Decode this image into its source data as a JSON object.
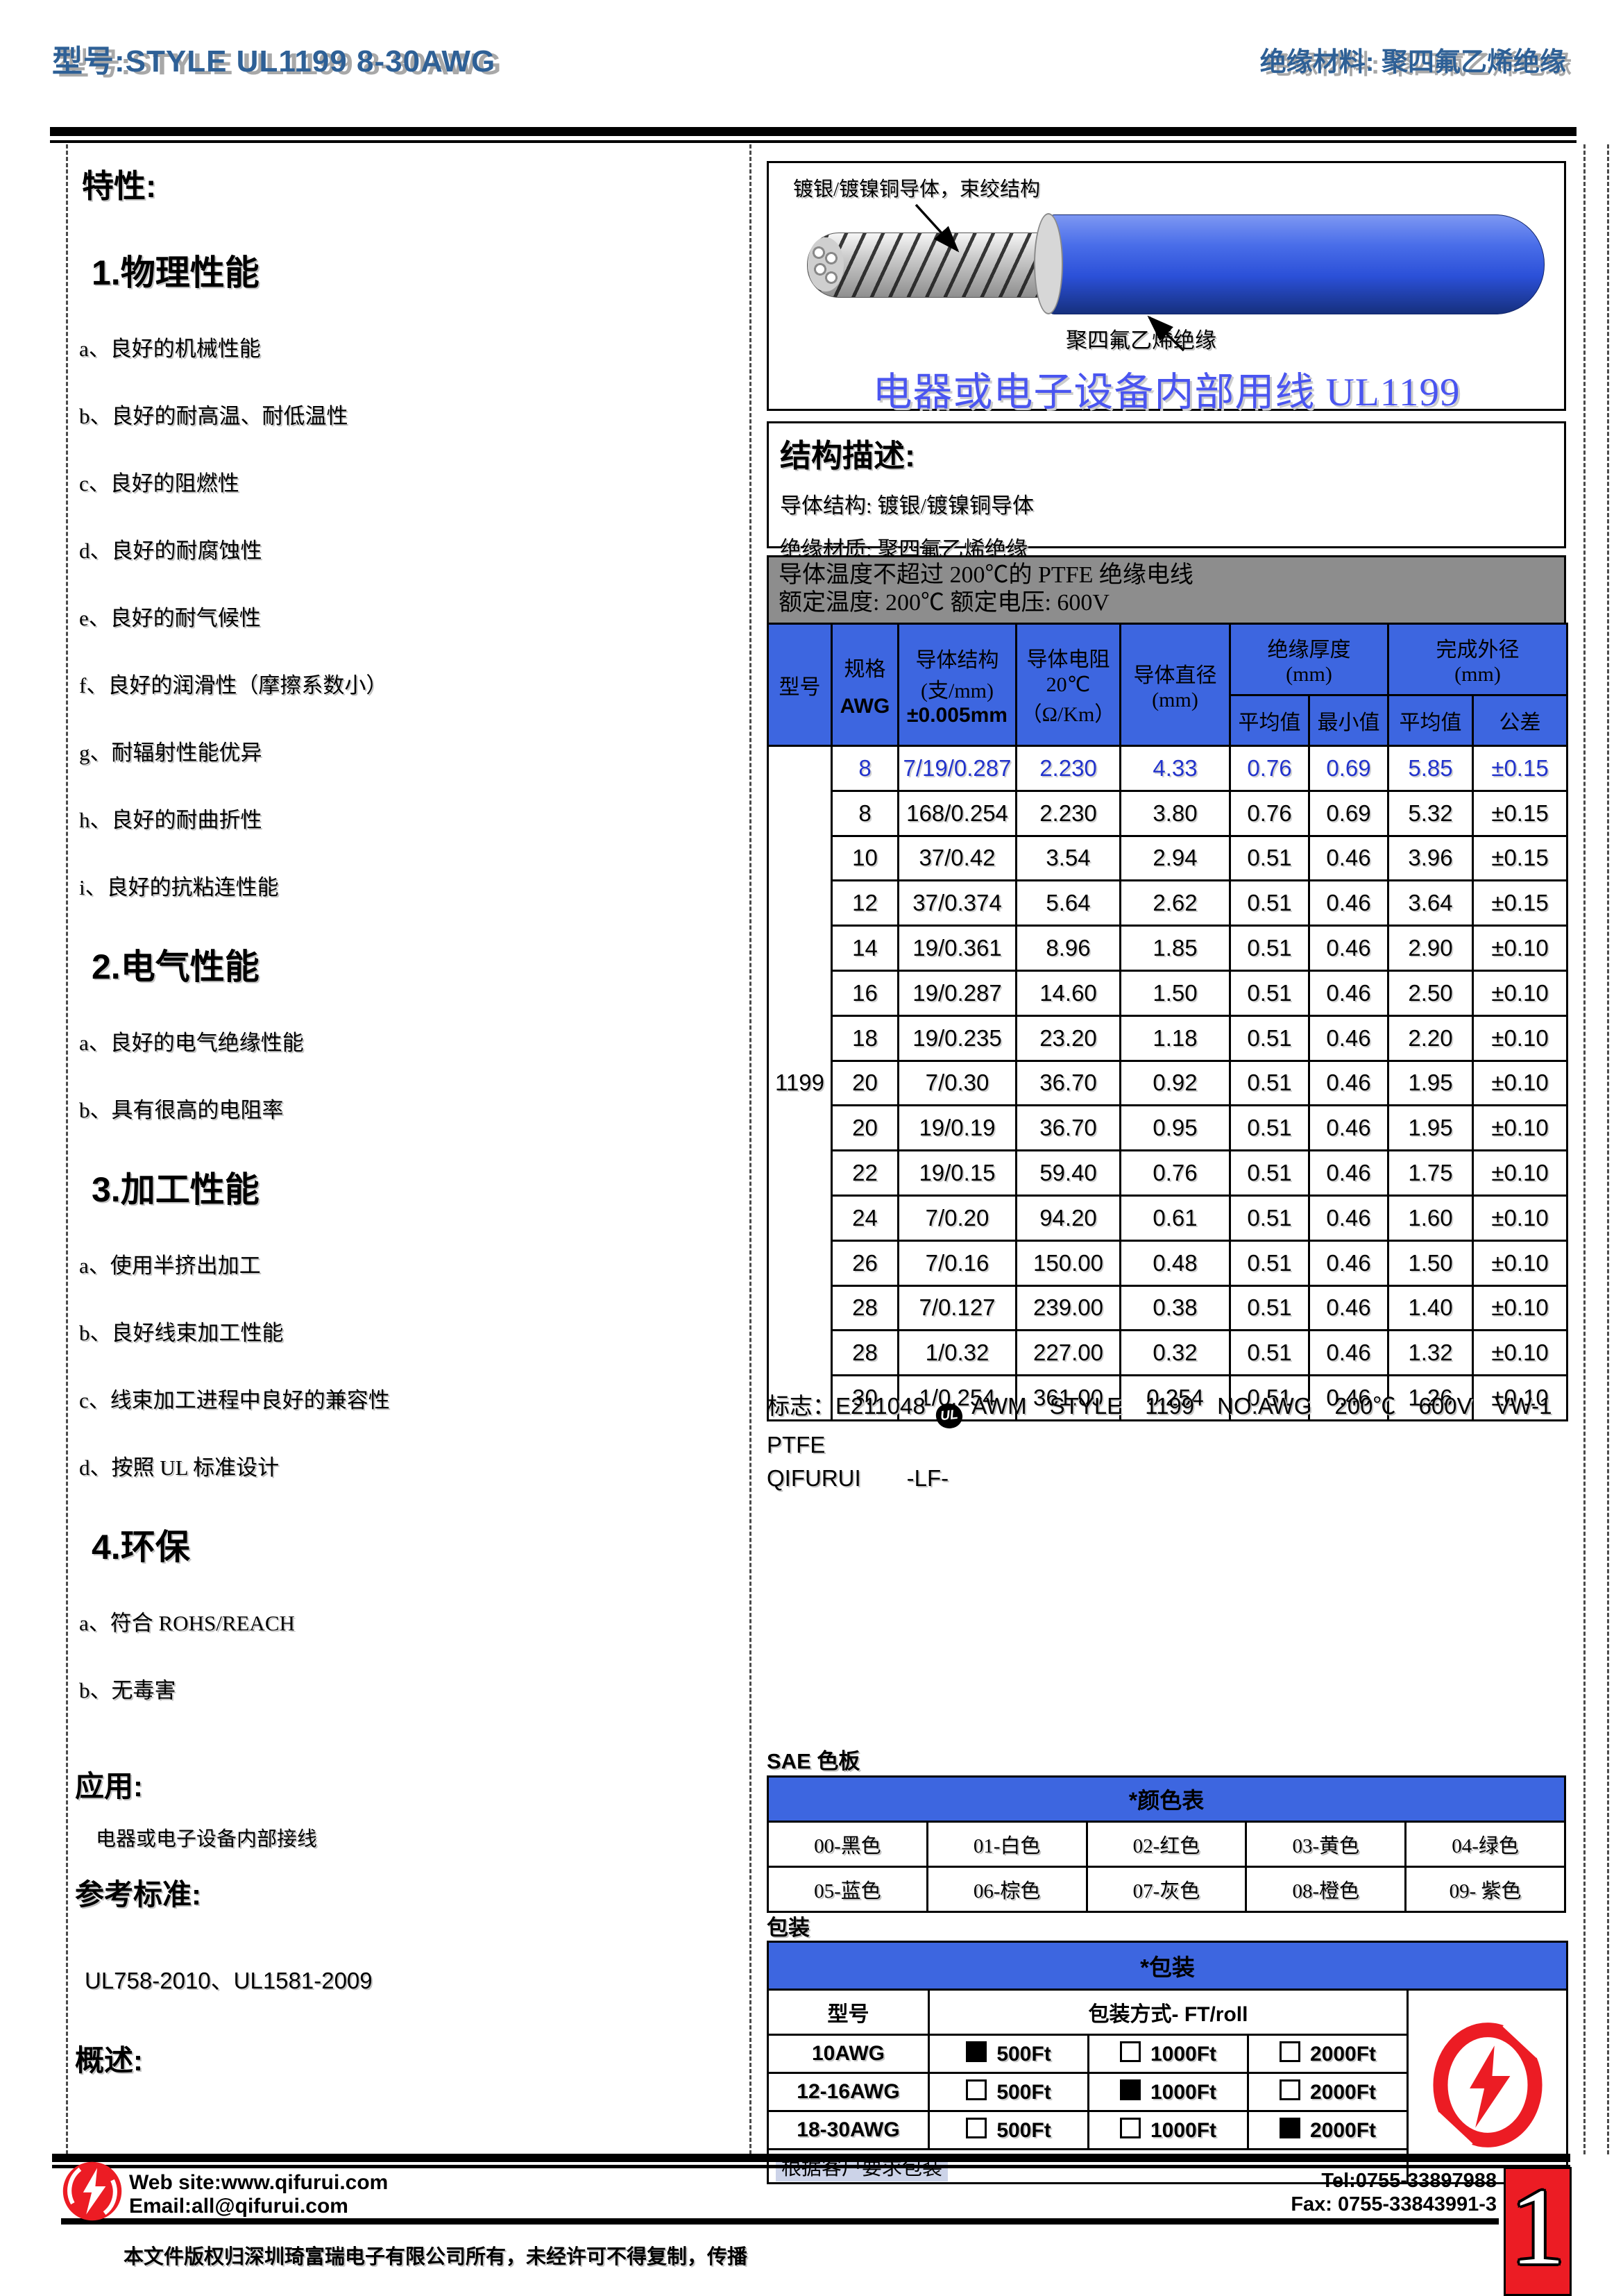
{
  "header": {
    "left_title": "型号:STYLE UL1199 8-30AWG",
    "right_title": "绝缘材料: 聚四氟乙烯绝缘"
  },
  "features": {
    "title": "特性:",
    "sections": [
      {
        "heading": "1.物理性能",
        "items": [
          "a、良好的机械性能",
          "b、良好的耐高温、耐低温性",
          "c、良好的阻燃性",
          "d、良好的耐腐蚀性",
          "e、良好的耐气候性",
          "f、良好的润滑性（摩擦系数小）",
          "g、耐辐射性能优异",
          "h、良好的耐曲折性",
          "i、良好的抗粘连性能"
        ]
      },
      {
        "heading": "2.电气性能",
        "items": [
          "a、良好的电气绝缘性能",
          "b、具有很高的电阻率"
        ]
      },
      {
        "heading": "3.加工性能",
        "items": [
          "a、使用半挤出加工",
          "b、良好线束加工性能",
          "c、线束加工进程中良好的兼容性",
          "d、按照 UL 标准设计"
        ]
      },
      {
        "heading": "4.环保",
        "items": [
          "a、符合 ROHS/REACH",
          "b、无毒害"
        ]
      }
    ],
    "application_heading": "应用:",
    "application_text": "电器或电子设备内部接线",
    "reference_heading": "参考标准:",
    "reference_text": "UL758-2010、UL1581-2009",
    "overview_heading": "概述:",
    "overview_placeholder": "."
  },
  "wire_diagram": {
    "conductor_label": "镀银/镀镍铜导体，束绞结构",
    "insulation_label": "聚四氟乙烯绝缘",
    "caption": "电器或电子设备内部用线 UL1199"
  },
  "structure": {
    "title": "结构描述:",
    "conductor_line": "导体结构: 镀银/镀镍铜导体",
    "insulation_line": "绝缘材质: 聚四氟乙烯绝缘"
  },
  "spec_table": {
    "caption_line1": "导体温度不超过 200℃的 PTFE 绝缘电线",
    "caption_line2": "额定温度: 200℃ 额定电压: 600V",
    "headers": {
      "model": "型号",
      "spec": "规格",
      "awg": "AWG",
      "conductor": "导体结构",
      "conductor_unit": "(支/mm)",
      "conductor_tol": "±0.005mm",
      "resistance": "导体电阻",
      "resistance_temp": "20℃",
      "resistance_unit": "（Ω/Km）",
      "diameter": "导体直径",
      "diameter_unit": "(mm)",
      "insulation": "绝缘厚度",
      "insulation_unit": "(mm)",
      "od": "完成外径",
      "od_unit": "(mm)",
      "avg": "平均值",
      "min": "最小值",
      "avg2": "平均值",
      "tolerance": "公差"
    },
    "model_value": "1199",
    "rows": [
      [
        "8",
        "7/19/0.287",
        "2.230",
        "4.33",
        "0.76",
        "0.69",
        "5.85",
        "±0.15"
      ],
      [
        "8",
        "168/0.254",
        "2.230",
        "3.80",
        "0.76",
        "0.69",
        "5.32",
        "±0.15"
      ],
      [
        "10",
        "37/0.42",
        "3.54",
        "2.94",
        "0.51",
        "0.46",
        "3.96",
        "±0.15"
      ],
      [
        "12",
        "37/0.374",
        "5.64",
        "2.62",
        "0.51",
        "0.46",
        "3.64",
        "±0.15"
      ],
      [
        "14",
        "19/0.361",
        "8.96",
        "1.85",
        "0.51",
        "0.46",
        "2.90",
        "±0.10"
      ],
      [
        "16",
        "19/0.287",
        "14.60",
        "1.50",
        "0.51",
        "0.46",
        "2.50",
        "±0.10"
      ],
      [
        "18",
        "19/0.235",
        "23.20",
        "1.18",
        "0.51",
        "0.46",
        "2.20",
        "±0.10"
      ],
      [
        "20",
        "7/0.30",
        "36.70",
        "0.92",
        "0.51",
        "0.46",
        "1.95",
        "±0.10"
      ],
      [
        "20",
        "19/0.19",
        "36.70",
        "0.95",
        "0.51",
        "0.46",
        "1.95",
        "±0.10"
      ],
      [
        "22",
        "19/0.15",
        "59.40",
        "0.76",
        "0.51",
        "0.46",
        "1.75",
        "±0.10"
      ],
      [
        "24",
        "7/0.20",
        "94.20",
        "0.61",
        "0.51",
        "0.46",
        "1.60",
        "±0.10"
      ],
      [
        "26",
        "7/0.16",
        "150.00",
        "0.48",
        "0.51",
        "0.46",
        "1.50",
        "±0.10"
      ],
      [
        "28",
        "7/0.127",
        "239.00",
        "0.38",
        "0.51",
        "0.46",
        "1.40",
        "±0.10"
      ],
      [
        "28",
        "1/0.32",
        "227.00",
        "0.32",
        "0.51",
        "0.46",
        "1.32",
        "±0.10"
      ],
      [
        "30",
        "1/0.254",
        "361.00",
        "0.254",
        "0.51",
        "0.46",
        "1.26",
        "±0.10"
      ]
    ]
  },
  "mark": {
    "prefix": "标志：E211048",
    "ul_icon_text": "UL",
    "line1": "AWM　STYLE　1199　NO.AWG　200℃　600V　VW-1 PTFE",
    "line2": "QIFURUI　　-LF-"
  },
  "sae": {
    "label": "SAE 色板",
    "table_header": "*颜色表",
    "rows": [
      [
        "00-黑色",
        "01-白色",
        "02-红色",
        "03-黄色",
        "04-绿色"
      ],
      [
        "05-蓝色",
        "06-棕色",
        "07-灰色",
        "08-橙色",
        "09- 紫色"
      ]
    ]
  },
  "packaging": {
    "label": "包装",
    "table_header": "*包装",
    "col_model": "型号",
    "col_method": "包装方式- FT/roll",
    "rows": [
      {
        "model": "10AWG",
        "options": [
          {
            "label": "500Ft",
            "checked": true
          },
          {
            "label": "1000Ft",
            "checked": false
          },
          {
            "label": "2000Ft",
            "checked": false
          }
        ]
      },
      {
        "model": "12-16AWG",
        "options": [
          {
            "label": "500Ft",
            "checked": false
          },
          {
            "label": "1000Ft",
            "checked": true
          },
          {
            "label": "2000Ft",
            "checked": false
          }
        ]
      },
      {
        "model": "18-30AWG",
        "options": [
          {
            "label": "500Ft",
            "checked": false
          },
          {
            "label": "1000Ft",
            "checked": false
          },
          {
            "label": "2000Ft",
            "checked": true
          }
        ]
      }
    ],
    "note": "根据客户要求包装"
  },
  "footer": {
    "website": "Web site:www.qifurui.com",
    "email": "Email:all@qifurui.com",
    "tel": "Tel:0755-33897988",
    "fax": "Fax: 0755-33843991-3",
    "copyright": "本文件版权归深圳琦富瑞电子有限公司所有，未经许可不得复制，传播",
    "page_number": "1"
  },
  "colors": {
    "header_text": "#2e6096",
    "table_header_bg": "#3d66e0",
    "highlight_row_text": "#2233cc",
    "caption_bg": "#8d8d8d",
    "brand_red": "#ec1c24",
    "wire_insulation_blue": "#2b50d8",
    "diagram_caption_text": "#4a55f0",
    "note_highlight_bg": "#ccd3e8"
  }
}
